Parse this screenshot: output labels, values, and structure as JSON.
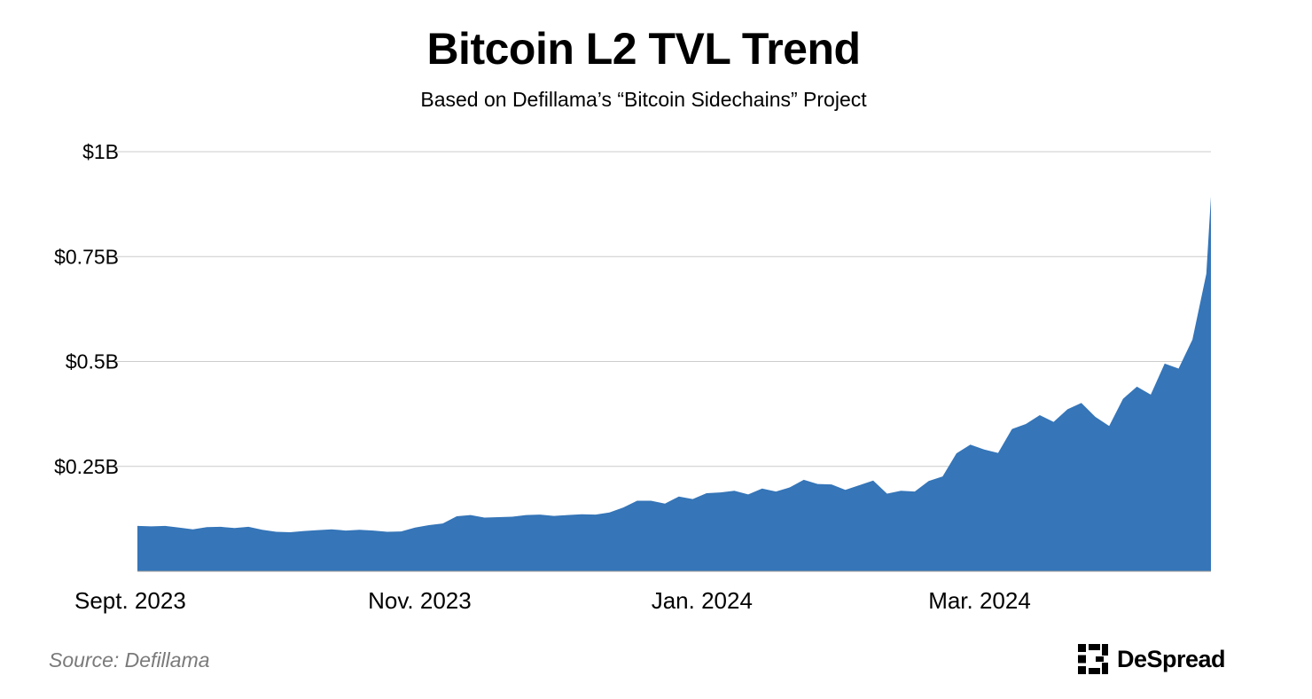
{
  "header": {
    "title": "Bitcoin L2 TVL Trend",
    "subtitle": "Based on Defillama’s “Bitcoin Sidechains” Project"
  },
  "footer": {
    "source": "Source: Defillama",
    "brand": "DeSpread"
  },
  "colors": {
    "area": "#3575B8",
    "grid": "#cccccc",
    "axis": "#999999",
    "source_text": "#7a7a7a"
  },
  "chart_data": {
    "type": "area",
    "title": "Bitcoin L2 TVL Trend",
    "subtitle": "Based on Defillama’s “Bitcoin Sidechains” Project",
    "xlabel": "",
    "ylabel": "",
    "x_ticks": [
      "Sept. 2023",
      "Nov. 2023",
      "Jan. 2024",
      "Mar. 2024"
    ],
    "x_tick_dates": [
      "2023-09-01",
      "2023-11-01",
      "2024-01-01",
      "2024-03-01"
    ],
    "y_ticks": [
      {
        "value": 0.25,
        "label": "$0.25B"
      },
      {
        "value": 0.5,
        "label": "$0.5B"
      },
      {
        "value": 0.75,
        "label": "$0.75B"
      },
      {
        "value": 1.0,
        "label": "$1B"
      }
    ],
    "ylim": [
      0,
      1.0
    ],
    "xlim": [
      "2023-09-01",
      "2024-04-20"
    ],
    "y_unit": "B USD",
    "grid": "horizontal",
    "series": [
      {
        "name": "",
        "points": [
          [
            "2023-09-01",
            0.108
          ],
          [
            "2023-09-04",
            0.107
          ],
          [
            "2023-09-07",
            0.108
          ],
          [
            "2023-09-10",
            0.104
          ],
          [
            "2023-09-13",
            0.1
          ],
          [
            "2023-09-16",
            0.105
          ],
          [
            "2023-09-19",
            0.106
          ],
          [
            "2023-09-22",
            0.103
          ],
          [
            "2023-09-25",
            0.106
          ],
          [
            "2023-09-28",
            0.099
          ],
          [
            "2023-10-01",
            0.094
          ],
          [
            "2023-10-04",
            0.093
          ],
          [
            "2023-10-07",
            0.096
          ],
          [
            "2023-10-10",
            0.098
          ],
          [
            "2023-10-13",
            0.1
          ],
          [
            "2023-10-16",
            0.097
          ],
          [
            "2023-10-19",
            0.099
          ],
          [
            "2023-10-22",
            0.097
          ],
          [
            "2023-10-25",
            0.094
          ],
          [
            "2023-10-28",
            0.095
          ],
          [
            "2023-10-31",
            0.104
          ],
          [
            "2023-11-03",
            0.11
          ],
          [
            "2023-11-06",
            0.114
          ],
          [
            "2023-11-09",
            0.131
          ],
          [
            "2023-11-12",
            0.134
          ],
          [
            "2023-11-15",
            0.128
          ],
          [
            "2023-11-18",
            0.129
          ],
          [
            "2023-11-21",
            0.13
          ],
          [
            "2023-11-24",
            0.134
          ],
          [
            "2023-11-27",
            0.135
          ],
          [
            "2023-11-30",
            0.132
          ],
          [
            "2023-12-03",
            0.134
          ],
          [
            "2023-12-06",
            0.136
          ],
          [
            "2023-12-09",
            0.135
          ],
          [
            "2023-12-12",
            0.14
          ],
          [
            "2023-12-15",
            0.152
          ],
          [
            "2023-12-18",
            0.168
          ],
          [
            "2023-12-21",
            0.168
          ],
          [
            "2023-12-24",
            0.161
          ],
          [
            "2023-12-27",
            0.178
          ],
          [
            "2023-12-30",
            0.172
          ],
          [
            "2024-01-02",
            0.186
          ],
          [
            "2024-01-05",
            0.188
          ],
          [
            "2024-01-08",
            0.192
          ],
          [
            "2024-01-11",
            0.183
          ],
          [
            "2024-01-14",
            0.197
          ],
          [
            "2024-01-17",
            0.19
          ],
          [
            "2024-01-20",
            0.2
          ],
          [
            "2024-01-23",
            0.218
          ],
          [
            "2024-01-26",
            0.208
          ],
          [
            "2024-01-29",
            0.207
          ],
          [
            "2024-02-01",
            0.194
          ],
          [
            "2024-02-04",
            0.205
          ],
          [
            "2024-02-07",
            0.216
          ],
          [
            "2024-02-10",
            0.185
          ],
          [
            "2024-02-13",
            0.192
          ],
          [
            "2024-02-16",
            0.19
          ],
          [
            "2024-02-19",
            0.215
          ],
          [
            "2024-02-22",
            0.226
          ],
          [
            "2024-02-25",
            0.281
          ],
          [
            "2024-02-28",
            0.302
          ],
          [
            "2024-03-02",
            0.29
          ],
          [
            "2024-03-05",
            0.282
          ],
          [
            "2024-03-08",
            0.339
          ],
          [
            "2024-03-11",
            0.351
          ],
          [
            "2024-03-14",
            0.372
          ],
          [
            "2024-03-17",
            0.356
          ],
          [
            "2024-03-20",
            0.386
          ],
          [
            "2024-03-23",
            0.401
          ],
          [
            "2024-03-26",
            0.368
          ],
          [
            "2024-03-29",
            0.346
          ],
          [
            "2024-04-01",
            0.411
          ],
          [
            "2024-04-04",
            0.44
          ],
          [
            "2024-04-07",
            0.421
          ],
          [
            "2024-04-10",
            0.495
          ],
          [
            "2024-04-13",
            0.483
          ],
          [
            "2024-04-16",
            0.552
          ],
          [
            "2024-04-19",
            0.709
          ],
          [
            "2024-04-20",
            0.893
          ]
        ]
      }
    ]
  }
}
